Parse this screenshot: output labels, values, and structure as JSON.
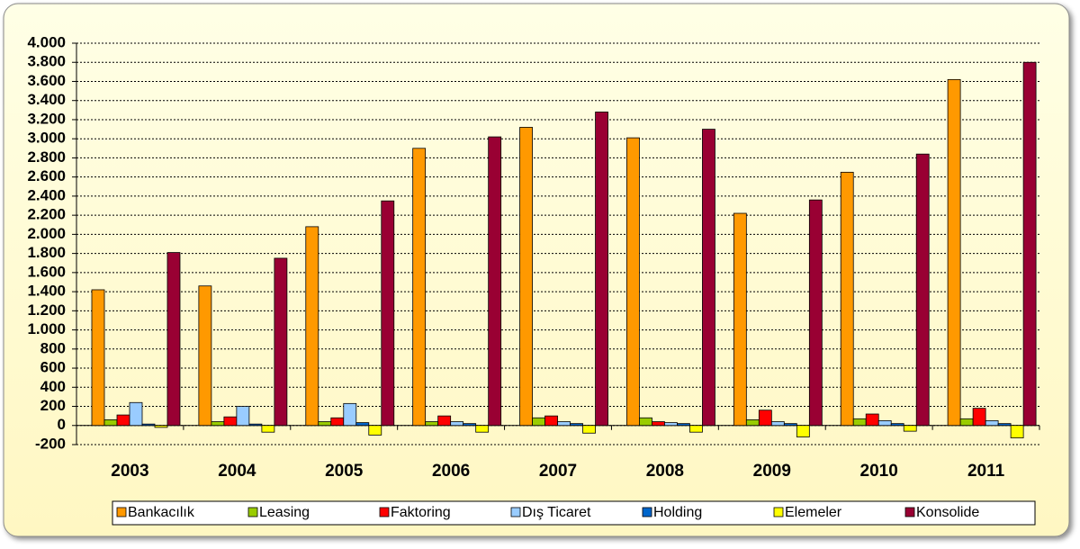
{
  "chart_data": {
    "type": "bar",
    "categories": [
      "2003",
      "2004",
      "2005",
      "2006",
      "2007",
      "2008",
      "2009",
      "2010",
      "2011"
    ],
    "series": [
      {
        "name": "Bankacılık",
        "color": "#FF9900",
        "values": [
          1420,
          1460,
          2080,
          2900,
          3120,
          3010,
          2220,
          2650,
          3620
        ]
      },
      {
        "name": "Leasing",
        "color": "#99CC00",
        "values": [
          60,
          40,
          40,
          40,
          80,
          80,
          60,
          70,
          70
        ]
      },
      {
        "name": "Faktoring",
        "color": "#FF0000",
        "values": [
          110,
          90,
          80,
          100,
          100,
          40,
          160,
          120,
          180
        ]
      },
      {
        "name": "Dış Ticaret",
        "color": "#99CCFF",
        "values": [
          240,
          200,
          230,
          40,
          40,
          30,
          40,
          50,
          50
        ]
      },
      {
        "name": "Holding",
        "color": "#0066CC",
        "values": [
          15,
          15,
          30,
          20,
          20,
          20,
          20,
          20,
          20
        ]
      },
      {
        "name": "Elemeler",
        "color": "#FFFF00",
        "values": [
          -20,
          -70,
          -100,
          -70,
          -80,
          -70,
          -120,
          -60,
          -130
        ]
      },
      {
        "name": "Konsolide",
        "color": "#990033",
        "values": [
          1810,
          1750,
          2350,
          3020,
          3280,
          3100,
          2360,
          2840,
          3800
        ]
      }
    ],
    "ylim": [
      -200,
      4000
    ],
    "yticks": [
      -200,
      0,
      200,
      400,
      600,
      800,
      {
        "value": 1000,
        "label": "1.000"
      },
      {
        "value": 1200,
        "label": "1.200"
      },
      {
        "value": 1400,
        "label": "1.400"
      },
      {
        "value": 1600,
        "label": "1.600"
      },
      {
        "value": 1800,
        "label": "1.800"
      },
      {
        "value": 2000,
        "label": "2.000"
      },
      {
        "value": 2200,
        "label": "2.200"
      },
      {
        "value": 2400,
        "label": "2.400"
      },
      {
        "value": 2600,
        "label": "2.600"
      },
      {
        "value": 2800,
        "label": "2.800"
      },
      {
        "value": 3000,
        "label": "3.000"
      },
      {
        "value": 3200,
        "label": "3.200"
      },
      {
        "value": 3400,
        "label": "3.400"
      },
      {
        "value": 3600,
        "label": "3.600"
      },
      {
        "value": 3800,
        "label": "3.800"
      },
      {
        "value": 4000,
        "label": "4.000"
      }
    ],
    "grid": true,
    "legend": "bottom"
  }
}
